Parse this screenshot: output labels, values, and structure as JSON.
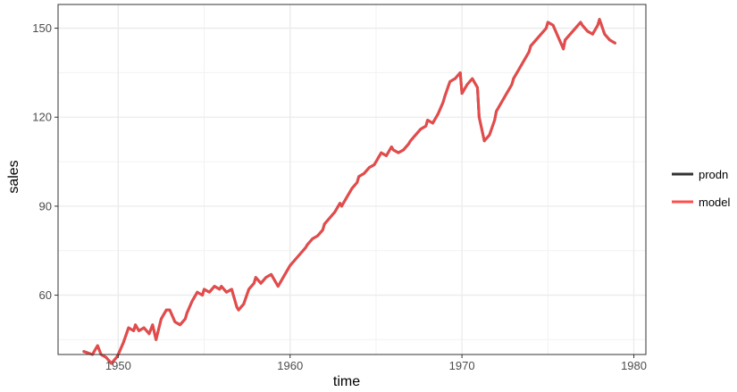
{
  "chart_data": {
    "type": "line",
    "title": "",
    "xlabel": "time",
    "ylabel": "sales",
    "xlim": [
      1946.5,
      1980.7
    ],
    "ylim": [
      40.0,
      158.0
    ],
    "x_ticks": [
      1950,
      1960,
      1970,
      1980
    ],
    "x_tick_labels": [
      "1950",
      "1960",
      "1970",
      "1980"
    ],
    "y_ticks": [
      60,
      90,
      120,
      150
    ],
    "y_tick_labels": [
      "60",
      "90",
      "120",
      "150"
    ],
    "grid": true,
    "legend_position": "right",
    "series": [
      {
        "name": "prodn",
        "color": "#333333",
        "x": [
          1948.0,
          1948.5,
          1948.8,
          1949.0,
          1949.3,
          1949.6,
          1949.9,
          1950.0,
          1950.3,
          1950.6,
          1950.9,
          1951.0,
          1951.2,
          1951.5,
          1951.8,
          1952.0,
          1952.2,
          1952.5,
          1952.8,
          1953.0,
          1953.3,
          1953.6,
          1953.9,
          1954.0,
          1954.3,
          1954.6,
          1954.9,
          1955.0,
          1955.3,
          1955.6,
          1955.9,
          1956.0,
          1956.3,
          1956.6,
          1956.9,
          1957.0,
          1957.3,
          1957.6,
          1957.9,
          1958.0,
          1958.3,
          1958.6,
          1958.9,
          1959.0,
          1959.3,
          1959.6,
          1959.9,
          1960.0,
          1960.3,
          1960.6,
          1960.9,
          1961.0,
          1961.3,
          1961.6,
          1961.9,
          1962.0,
          1962.3,
          1962.6,
          1962.9,
          1963.0,
          1963.3,
          1963.6,
          1963.9,
          1964.0,
          1964.3,
          1964.6,
          1964.9,
          1965.0,
          1965.3,
          1965.6,
          1965.9,
          1966.0,
          1966.3,
          1966.6,
          1966.9,
          1967.0,
          1967.3,
          1967.6,
          1967.9,
          1968.0,
          1968.3,
          1968.6,
          1968.9,
          1969.0,
          1969.3,
          1969.6,
          1969.9,
          1970.0,
          1970.3,
          1970.6,
          1970.9,
          1971.0,
          1971.3,
          1971.6,
          1971.9,
          1972.0,
          1972.3,
          1972.6,
          1972.9,
          1973.0,
          1973.3,
          1973.6,
          1973.9,
          1974.0,
          1974.3,
          1974.6,
          1974.9,
          1975.0,
          1975.3,
          1975.6,
          1975.9,
          1976.0,
          1976.3,
          1976.6,
          1976.9,
          1977.0,
          1977.3,
          1977.6,
          1977.9,
          1978.0,
          1978.3,
          1978.6,
          1978.9
        ],
        "values": [
          41.0,
          40.0,
          43.0,
          40.0,
          39.0,
          37.0,
          39.0,
          40.0,
          44.0,
          49.0,
          48.0,
          50.0,
          48.0,
          49.0,
          47.0,
          50.0,
          45.0,
          52.0,
          55.0,
          55.0,
          51.0,
          50.0,
          52.0,
          54.0,
          58.0,
          61.0,
          60.0,
          62.0,
          61.0,
          63.0,
          62.0,
          63.0,
          61.0,
          62.0,
          56.0,
          55.0,
          57.0,
          62.0,
          64.0,
          66.0,
          64.0,
          66.0,
          67.0,
          66.0,
          63.0,
          66.0,
          69.0,
          70.0,
          72.0,
          74.0,
          76.0,
          77.0,
          79.0,
          80.0,
          82.0,
          84.0,
          86.0,
          88.0,
          91.0,
          90.0,
          93.0,
          96.0,
          98.0,
          100.0,
          101.0,
          103.0,
          104.0,
          105.0,
          108.0,
          107.0,
          110.0,
          109.0,
          108.0,
          109.0,
          111.0,
          112.0,
          114.0,
          116.0,
          117.0,
          119.0,
          118.0,
          121.0,
          125.0,
          127.0,
          132.0,
          133.0,
          135.0,
          128.0,
          131.0,
          133.0,
          130.0,
          120.0,
          112.0,
          114.0,
          119.0,
          122.0,
          125.0,
          128.0,
          131.0,
          133.0,
          136.0,
          139.0,
          142.0,
          144.0,
          146.0,
          148.0,
          150.0,
          152.0,
          151.0,
          147.0,
          143.0,
          146.0,
          148.0,
          150.0,
          152.0,
          151.0,
          149.0,
          148.0,
          151.0,
          153.0,
          148.0,
          146.0,
          145.0
        ],
        "values_note": ""
      },
      {
        "name": "model",
        "color": "#ff4d4d",
        "x": [],
        "values": []
      }
    ]
  },
  "legend": {
    "items": [
      {
        "label": "prodn",
        "color": "#333333"
      },
      {
        "label": "model",
        "color": "#ff4d4d"
      }
    ]
  }
}
